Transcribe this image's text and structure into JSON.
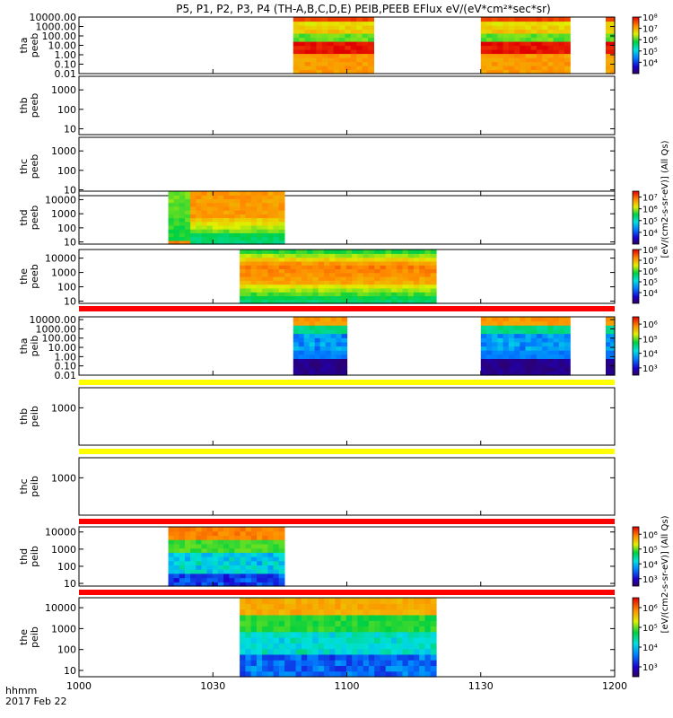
{
  "chart_data": {
    "type": "heatmap",
    "title": "P5, P1, P2, P3, P4 (TH-A,B,C,D,E) PEIB,PEEB EFlux eV/(eV*cm²*sec*sr)",
    "x_axis": {
      "unit": "hhmm",
      "date": "2017 Feb 22",
      "range_hhmm": [
        "1000",
        "1200"
      ],
      "range_minutes": [
        0,
        120
      ],
      "ticks": [
        {
          "minute": 0,
          "label": "1000"
        },
        {
          "minute": 30,
          "label": "1030"
        },
        {
          "minute": 60,
          "label": "1100"
        },
        {
          "minute": 90,
          "label": "1130"
        },
        {
          "minute": 120,
          "label": "1200"
        }
      ]
    },
    "colormap": "rainbow (purple-blue-cyan-green-yellow-orange-red)",
    "panels": [
      {
        "name": "tha peeb",
        "ylabel": [
          "tha",
          "peeb"
        ],
        "scale": "log",
        "ylim": [
          0.01,
          10000
        ],
        "yticks": [
          {
            "v": 10000,
            "l": "10000.00"
          },
          {
            "v": 1000,
            "l": "1000.00"
          },
          {
            "v": 100,
            "l": "100.00"
          },
          {
            "v": 10,
            "l": "10.00"
          },
          {
            "v": 1,
            "l": "1.00"
          },
          {
            "v": 0.1,
            "l": "0.10"
          },
          {
            "v": 0.01,
            "l": "0.01"
          }
        ],
        "profile": "peeb_tha",
        "intervals": [
          [
            48,
            66
          ],
          [
            90,
            110
          ],
          [
            118,
            120
          ]
        ],
        "colorbar": {
          "ticks": [
            {
              "e": 8,
              "l": "10⁸"
            },
            {
              "e": 7,
              "l": "10⁷"
            },
            {
              "e": 6,
              "l": "10⁶"
            },
            {
              "e": 5,
              "l": "10⁵"
            },
            {
              "e": 4,
              "l": "10⁴"
            }
          ],
          "range": [
            3,
            8
          ]
        }
      },
      {
        "name": "thb peeb",
        "ylabel": [
          "thb",
          "peeb"
        ],
        "scale": "log",
        "ylim": [
          5,
          5000
        ],
        "yticks": [
          {
            "v": 1000,
            "l": "1000"
          },
          {
            "v": 100,
            "l": "100"
          },
          {
            "v": 10,
            "l": "10"
          }
        ],
        "intervals": []
      },
      {
        "name": "thc peeb",
        "ylabel": [
          "thc",
          "peeb"
        ],
        "scale": "log",
        "ylim": [
          5,
          5000
        ],
        "yticks": [
          {
            "v": 1000,
            "l": "1000"
          },
          {
            "v": 100,
            "l": "100"
          },
          {
            "v": 10,
            "l": "10"
          }
        ],
        "intervals": []
      },
      {
        "name": "thd peeb",
        "ylabel": [
          "thd",
          "peeb"
        ],
        "scale": "log",
        "ylim": [
          7,
          40000
        ],
        "yticks": [
          {
            "v": 10000,
            "l": "10000"
          },
          {
            "v": 1000,
            "l": "1000"
          },
          {
            "v": 100,
            "l": "100"
          },
          {
            "v": 10,
            "l": "10"
          }
        ],
        "profile": "peeb_thd",
        "intervals": [
          [
            20,
            46
          ]
        ],
        "colorbar": {
          "ticks": [
            {
              "e": 7,
              "l": "10⁷"
            },
            {
              "e": 6,
              "l": "10⁶"
            },
            {
              "e": 5,
              "l": "10⁵"
            },
            {
              "e": 4,
              "l": "10⁴"
            }
          ],
          "range": [
            3,
            7.5
          ]
        }
      },
      {
        "name": "the peeb",
        "ylabel": [
          "the",
          "peeb"
        ],
        "scale": "log",
        "ylim": [
          7,
          40000
        ],
        "yticks": [
          {
            "v": 10000,
            "l": "10000"
          },
          {
            "v": 1000,
            "l": "1000"
          },
          {
            "v": 100,
            "l": "100"
          },
          {
            "v": 10,
            "l": "10"
          }
        ],
        "profile": "peeb_the",
        "intervals": [
          [
            36,
            80
          ]
        ],
        "colorbar": {
          "ticks": [
            {
              "e": 8,
              "l": "10⁸"
            },
            {
              "e": 7,
              "l": "10⁷"
            },
            {
              "e": 6,
              "l": "10⁶"
            },
            {
              "e": 5,
              "l": "10⁵"
            },
            {
              "e": 4,
              "l": "10⁴"
            }
          ],
          "range": [
            3,
            8
          ]
        }
      },
      {
        "name": "tha peib",
        "ylabel": [
          "tha",
          "peib"
        ],
        "scale": "log",
        "ylim": [
          0.01,
          20000
        ],
        "yticks": [
          {
            "v": 10000,
            "l": "10000.00"
          },
          {
            "v": 1000,
            "l": "1000.00"
          },
          {
            "v": 100,
            "l": "100.00"
          },
          {
            "v": 10,
            "l": "10.00"
          },
          {
            "v": 1,
            "l": "1.00"
          },
          {
            "v": 0.1,
            "l": "0.10"
          },
          {
            "v": 0.01,
            "l": "0.01"
          }
        ],
        "profile": "peib_tha",
        "intervals": [
          [
            48,
            60
          ],
          [
            90,
            110
          ],
          [
            118,
            120
          ]
        ],
        "colorbar": {
          "ticks": [
            {
              "e": 6,
              "l": "10⁶"
            },
            {
              "e": 5,
              "l": "10⁵"
            },
            {
              "e": 4,
              "l": "10⁴"
            },
            {
              "e": 3,
              "l": "10³"
            }
          ],
          "range": [
            2.5,
            6.5
          ]
        }
      },
      {
        "name": "thb peib",
        "ylabel": [
          "thb",
          "peib"
        ],
        "scale": "log",
        "ylim": [
          50,
          5000
        ],
        "yticks": [
          {
            "v": 1000,
            "l": "1000"
          }
        ],
        "intervals": []
      },
      {
        "name": "thc peib",
        "ylabel": [
          "thc",
          "peib"
        ],
        "scale": "log",
        "ylim": [
          50,
          5000
        ],
        "yticks": [
          {
            "v": 1000,
            "l": "1000"
          }
        ],
        "intervals": []
      },
      {
        "name": "thd peib",
        "ylabel": [
          "thd",
          "peib"
        ],
        "scale": "log",
        "ylim": [
          7,
          20000
        ],
        "yticks": [
          {
            "v": 10000,
            "l": "10000"
          },
          {
            "v": 1000,
            "l": "1000"
          },
          {
            "v": 100,
            "l": "100"
          },
          {
            "v": 10,
            "l": "10"
          }
        ],
        "profile": "peib_thd",
        "intervals": [
          [
            20,
            46
          ]
        ],
        "colorbar": {
          "ticks": [
            {
              "e": 6,
              "l": "10⁶"
            },
            {
              "e": 5,
              "l": "10⁵"
            },
            {
              "e": 4,
              "l": "10⁴"
            },
            {
              "e": 3,
              "l": "10³"
            }
          ],
          "range": [
            2.5,
            6.5
          ]
        }
      },
      {
        "name": "the peib",
        "ylabel": [
          "the",
          "peib"
        ],
        "scale": "log",
        "ylim": [
          5,
          30000
        ],
        "yticks": [
          {
            "v": 10000,
            "l": "10000"
          },
          {
            "v": 1000,
            "l": "1000"
          },
          {
            "v": 100,
            "l": "100"
          },
          {
            "v": 10,
            "l": "10"
          }
        ],
        "profile": "peib_the",
        "intervals": [
          [
            36,
            80
          ]
        ],
        "colorbar": {
          "ticks": [
            {
              "e": 6,
              "l": "10⁶"
            },
            {
              "e": 5,
              "l": "10⁵"
            },
            {
              "e": 4,
              "l": "10⁴"
            },
            {
              "e": 3,
              "l": "10³"
            }
          ],
          "range": [
            2.5,
            6.5
          ]
        }
      }
    ],
    "separators": [
      {
        "after": "the peeb",
        "color": "#ff0000"
      },
      {
        "after": "tha peib",
        "color": "#ffff00"
      },
      {
        "after": "thb peib",
        "color": "#ffff00"
      },
      {
        "after": "thc peib",
        "color": "#ff0000"
      },
      {
        "after": "thd peib",
        "color": "#ff0000"
      }
    ],
    "colorbar_units": [
      {
        "text": "[eV/(cm2-s-sr-eV)] (All Qs)",
        "group": "electron"
      },
      {
        "text": "[eV/(cm2-s-sr-eV)] (All Qs)",
        "group": "ion"
      }
    ],
    "legend": "none",
    "grid": false
  }
}
